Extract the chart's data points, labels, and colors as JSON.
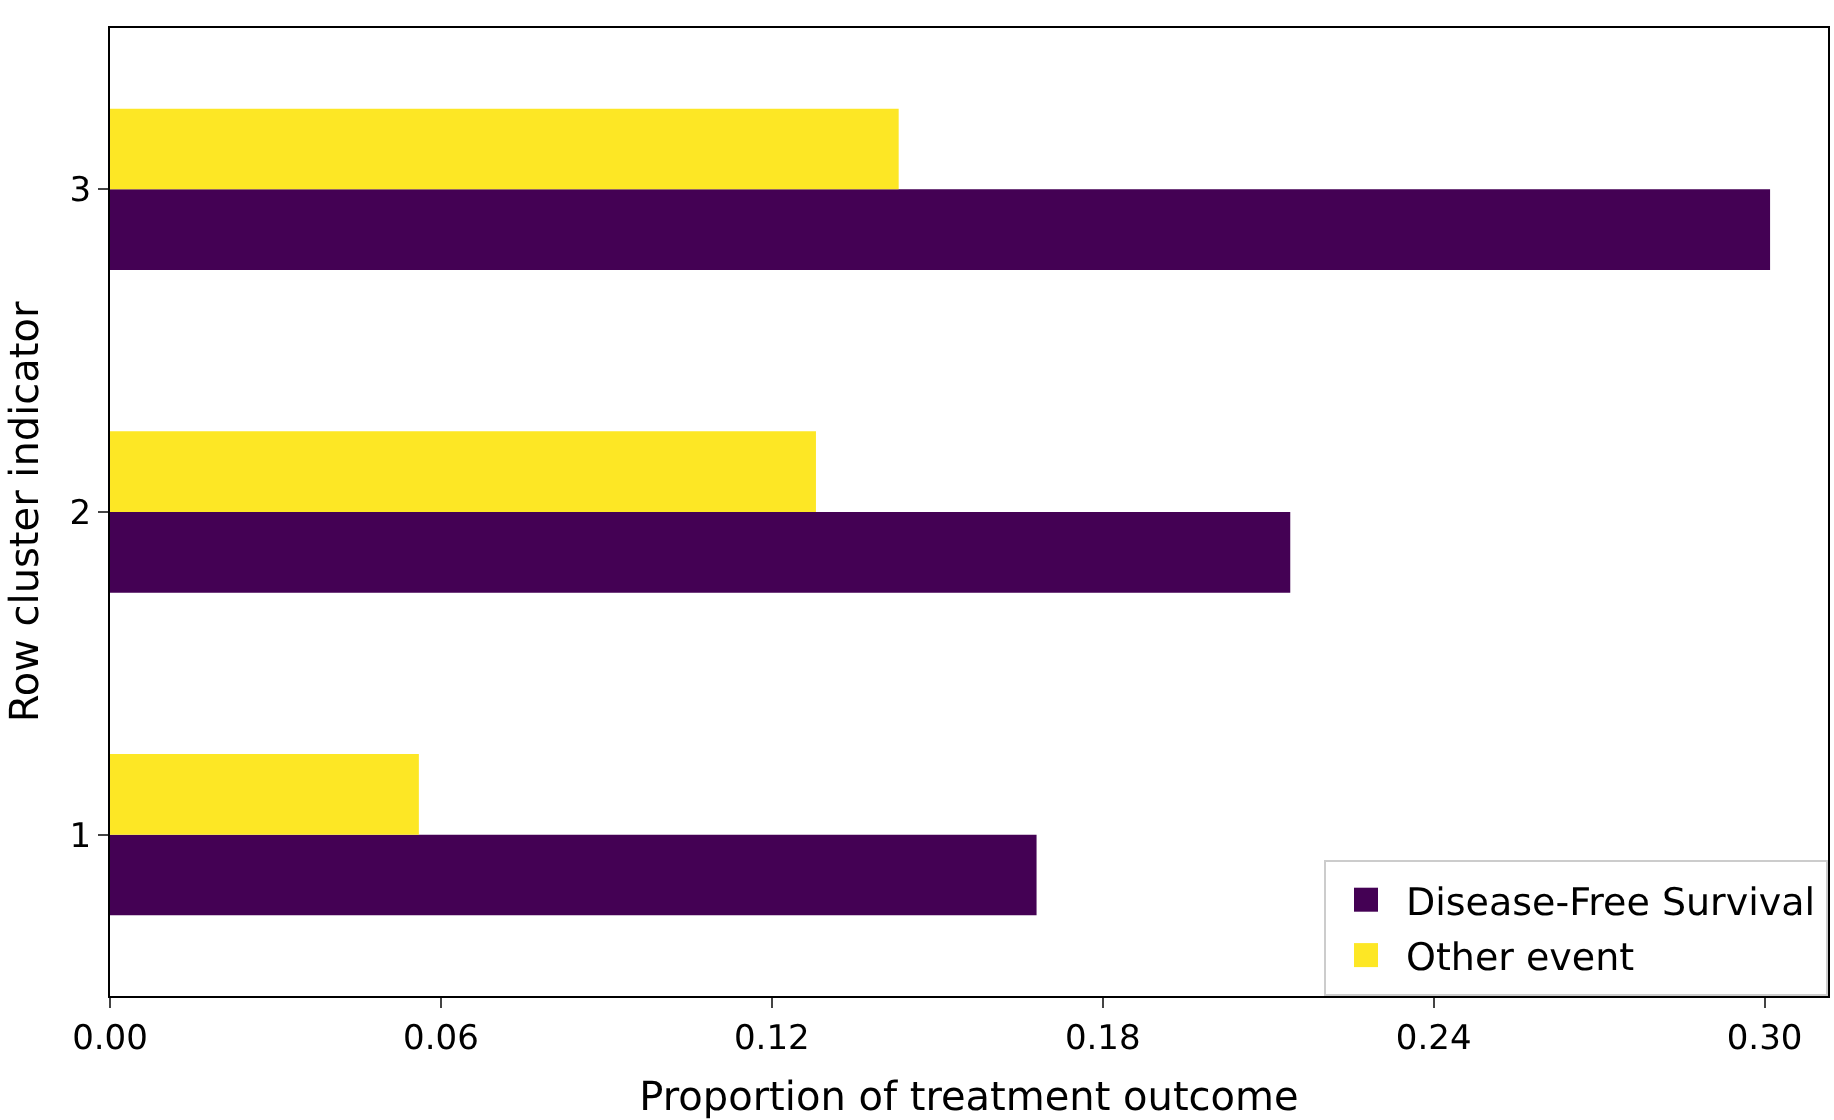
{
  "chart_data": {
    "type": "bar",
    "orientation": "horizontal",
    "xlabel": "Proportion of treatment outcome",
    "ylabel": "Row cluster indicator",
    "categories": [
      "3",
      "2",
      "1"
    ],
    "series": [
      {
        "name": "Disease-Free Survival",
        "color": "#440154",
        "values": [
          0.301,
          0.214,
          0.168
        ]
      },
      {
        "name": "Other event",
        "color": "#fde725",
        "values": [
          0.143,
          0.128,
          0.056
        ]
      }
    ],
    "xlim": [
      0,
      0.3115
    ],
    "xticks": [
      {
        "value": 0,
        "label": "0.00"
      },
      {
        "value": 0.06,
        "label": "0.06"
      },
      {
        "value": 0.12,
        "label": "0.12"
      },
      {
        "value": 0.18,
        "label": "0.18"
      },
      {
        "value": 0.24,
        "label": "0.24"
      },
      {
        "value": 0.3,
        "label": "0.30"
      }
    ],
    "legend": "bottom right"
  }
}
